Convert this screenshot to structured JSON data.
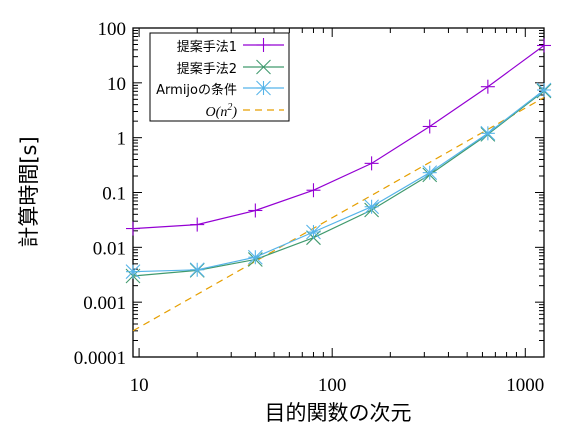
{
  "chart_data": {
    "type": "line",
    "xlabel": "目的関数の次元",
    "ylabel": "計算時間[s]",
    "xscale": "log",
    "yscale": "log",
    "xlim": [
      9.3,
      1250
    ],
    "ylim": [
      0.0001,
      100
    ],
    "grid": false,
    "legend_position": "top-left",
    "x_ticks": [
      10,
      100,
      1000
    ],
    "x_tick_labels": [
      "10",
      "100",
      "1000"
    ],
    "y_ticks": [
      0.0001,
      0.001,
      0.01,
      0.1,
      1,
      10,
      100
    ],
    "y_tick_labels": [
      "0.0001",
      "0.001",
      "0.01",
      "0.1",
      "1",
      "10",
      "100"
    ],
    "series": [
      {
        "name": "提案手法1",
        "color": "#9400d3",
        "marker": "plus",
        "dash": false,
        "x": [
          9.3,
          20,
          40,
          80,
          160,
          320,
          640,
          1250
        ],
        "y": [
          0.022,
          0.026,
          0.047,
          0.11,
          0.34,
          1.6,
          8.5,
          48
        ]
      },
      {
        "name": "提案手法2",
        "color": "#409a6e",
        "marker": "cross",
        "dash": false,
        "x": [
          9.3,
          20,
          40,
          80,
          160,
          320,
          640,
          1250
        ],
        "y": [
          0.003,
          0.0038,
          0.006,
          0.015,
          0.048,
          0.21,
          1.15,
          7.1
        ]
      },
      {
        "name": "Armijoの条件",
        "color": "#56b4e9",
        "marker": "star",
        "dash": false,
        "x": [
          9.3,
          20,
          40,
          80,
          160,
          320,
          640,
          1250
        ],
        "y": [
          0.0036,
          0.0039,
          0.0066,
          0.019,
          0.055,
          0.23,
          1.2,
          7.4
        ]
      },
      {
        "name_parts": [
          "O(",
          "n",
          "2",
          ")"
        ],
        "color": "#e69f00",
        "marker": "none",
        "dash": true,
        "x": [
          9.3,
          1250
        ],
        "y": [
          0.0003,
          5.4
        ]
      }
    ]
  }
}
